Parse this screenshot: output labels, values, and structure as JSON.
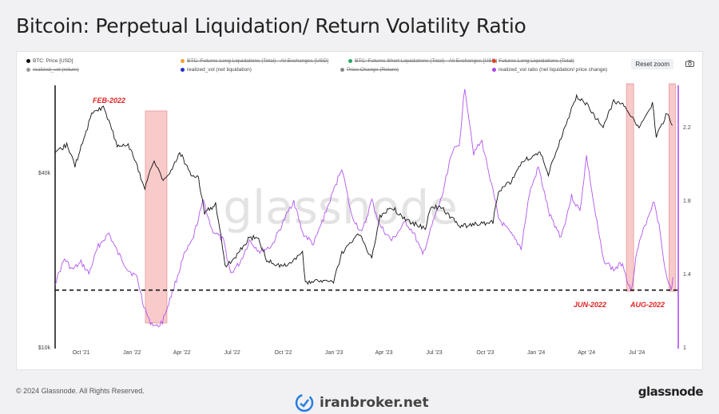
{
  "title": "Bitcoin: Perpetual Liquidation/ Return Volatility Ratio",
  "legend": [
    {
      "label": "BTC: Price [USD]",
      "color": "#111111",
      "strike": false
    },
    {
      "label": "BTC: Futures Long Liquidations (Total) - All Exchanges [USD]",
      "color": "#f0a030",
      "strike": true
    },
    {
      "label": "BTC: Futures Short Liquidations (Total) - All Exchanges [USD]",
      "color": "#22aa66",
      "strike": true
    },
    {
      "label": "Futures Long Liquidations (Total)",
      "color": "#e04020",
      "strike": true
    },
    {
      "label": "realized_vol (return)",
      "color": "#999999",
      "strike": true
    },
    {
      "label": "realized_vol (net liquidation)",
      "color": "#2233cc",
      "strike": false
    },
    {
      "label": "Price Change (Return)",
      "color": "#888888",
      "strike": true
    },
    {
      "label": "realized_vol ratio (net liquidation/ price change)",
      "color": "#aa44ee",
      "strike": false
    }
  ],
  "reset_zoom": "Reset zoom",
  "watermark_chart": "glassnode",
  "copyright": "© 2024 Glassnode. All Rights Reserved.",
  "brand": "glassnode",
  "site": "iranbroker.net",
  "colors": {
    "price": "#111111",
    "ratio": "#aa44ee",
    "highlight": "#f5b4b4",
    "annotation": "#e02020"
  },
  "chart_data": {
    "type": "line",
    "x_ticks": [
      "Oct '21",
      "Jan '22",
      "Apr '22",
      "Jul '22",
      "Oct '22",
      "Jan '23",
      "Apr '23",
      "Jul '23",
      "Oct '23",
      "Jan '24",
      "Apr '24",
      "Jul '24"
    ],
    "x_range": [
      "2021-08-15",
      "2024-09-05"
    ],
    "y_left_ticks": [
      "$10k",
      "$40k"
    ],
    "y_left_scale": "log",
    "y_left_range": [
      10000,
      85000
    ],
    "y_right_ticks": [
      "1",
      "1.4",
      "1.8",
      "2.2"
    ],
    "y_right_range": [
      1.0,
      2.47
    ],
    "threshold": 1.31,
    "series": [
      {
        "name": "BTC: Price [USD]",
        "axis": "left",
        "points": [
          [
            "2021-08-15",
            46000
          ],
          [
            "2021-09-05",
            50000
          ],
          [
            "2021-09-20",
            42000
          ],
          [
            "2021-10-10",
            55000
          ],
          [
            "2021-10-20",
            64000
          ],
          [
            "2021-11-10",
            67000
          ],
          [
            "2021-11-25",
            57000
          ],
          [
            "2021-12-05",
            49000
          ],
          [
            "2021-12-25",
            50000
          ],
          [
            "2022-01-10",
            42000
          ],
          [
            "2022-01-24",
            35000
          ],
          [
            "2022-02-10",
            44000
          ],
          [
            "2022-02-24",
            38000
          ],
          [
            "2022-03-10",
            39000
          ],
          [
            "2022-03-28",
            47000
          ],
          [
            "2022-04-15",
            40000
          ],
          [
            "2022-05-01",
            38000
          ],
          [
            "2022-05-12",
            29000
          ],
          [
            "2022-06-01",
            31000
          ],
          [
            "2022-06-18",
            19000
          ],
          [
            "2022-07-05",
            20000
          ],
          [
            "2022-07-30",
            23500
          ],
          [
            "2022-08-15",
            24000
          ],
          [
            "2022-09-01",
            20000
          ],
          [
            "2022-09-20",
            19000
          ],
          [
            "2022-10-15",
            19500
          ],
          [
            "2022-11-05",
            21000
          ],
          [
            "2022-11-10",
            16500
          ],
          [
            "2022-12-01",
            17000
          ],
          [
            "2022-12-31",
            16600
          ],
          [
            "2023-01-15",
            21000
          ],
          [
            "2023-02-15",
            24500
          ],
          [
            "2023-03-10",
            20000
          ],
          [
            "2023-03-25",
            28000
          ],
          [
            "2023-04-14",
            30500
          ],
          [
            "2023-05-10",
            27500
          ],
          [
            "2023-06-15",
            25500
          ],
          [
            "2023-06-25",
            30500
          ],
          [
            "2023-07-15",
            30000
          ],
          [
            "2023-08-17",
            26000
          ],
          [
            "2023-09-15",
            26500
          ],
          [
            "2023-10-15",
            27000
          ],
          [
            "2023-10-25",
            34500
          ],
          [
            "2023-11-15",
            37000
          ],
          [
            "2023-12-08",
            44000
          ],
          [
            "2024-01-10",
            46500
          ],
          [
            "2024-01-23",
            39500
          ],
          [
            "2024-02-15",
            52000
          ],
          [
            "2024-03-05",
            66000
          ],
          [
            "2024-03-14",
            73000
          ],
          [
            "2024-04-01",
            69000
          ],
          [
            "2024-04-17",
            61500
          ],
          [
            "2024-05-01",
            58000
          ],
          [
            "2024-05-20",
            70000
          ],
          [
            "2024-06-10",
            68000
          ],
          [
            "2024-06-25",
            61000
          ],
          [
            "2024-07-05",
            56500
          ],
          [
            "2024-07-29",
            69000
          ],
          [
            "2024-08-05",
            53000
          ],
          [
            "2024-08-15",
            58500
          ],
          [
            "2024-08-25",
            64000
          ],
          [
            "2024-09-03",
            58000
          ]
        ]
      },
      {
        "name": "realized_vol ratio (net liquidation/ price change)",
        "axis": "right",
        "points": [
          [
            "2021-08-15",
            1.35
          ],
          [
            "2021-09-01",
            1.48
          ],
          [
            "2021-09-15",
            1.42
          ],
          [
            "2021-10-01",
            1.46
          ],
          [
            "2021-10-15",
            1.4
          ],
          [
            "2021-11-01",
            1.55
          ],
          [
            "2021-11-20",
            1.62
          ],
          [
            "2021-12-05",
            1.52
          ],
          [
            "2021-12-25",
            1.42
          ],
          [
            "2022-01-10",
            1.38
          ],
          [
            "2022-01-20",
            1.25
          ],
          [
            "2022-02-01",
            1.14
          ],
          [
            "2022-02-15",
            1.11
          ],
          [
            "2022-02-25",
            1.14
          ],
          [
            "2022-03-15",
            1.3
          ],
          [
            "2022-04-05",
            1.5
          ],
          [
            "2022-04-20",
            1.58
          ],
          [
            "2022-05-10",
            1.8
          ],
          [
            "2022-05-25",
            1.64
          ],
          [
            "2022-06-15",
            1.58
          ],
          [
            "2022-06-28",
            1.4
          ],
          [
            "2022-07-15",
            1.46
          ],
          [
            "2022-08-01",
            1.58
          ],
          [
            "2022-08-20",
            1.52
          ],
          [
            "2022-09-10",
            1.55
          ],
          [
            "2022-10-01",
            1.68
          ],
          [
            "2022-10-20",
            1.8
          ],
          [
            "2022-11-05",
            1.62
          ],
          [
            "2022-11-25",
            1.56
          ],
          [
            "2022-12-15",
            1.72
          ],
          [
            "2023-01-01",
            1.86
          ],
          [
            "2023-01-15",
            1.98
          ],
          [
            "2023-02-01",
            1.72
          ],
          [
            "2023-02-20",
            1.62
          ],
          [
            "2023-03-10",
            1.8
          ],
          [
            "2023-03-25",
            1.66
          ],
          [
            "2023-04-15",
            1.58
          ],
          [
            "2023-05-10",
            1.68
          ],
          [
            "2023-05-25",
            1.62
          ],
          [
            "2023-06-10",
            1.5
          ],
          [
            "2023-07-01",
            1.7
          ],
          [
            "2023-07-15",
            1.82
          ],
          [
            "2023-08-01",
            2.06
          ],
          [
            "2023-08-15",
            2.1
          ],
          [
            "2023-08-25",
            2.42
          ],
          [
            "2023-09-10",
            2.06
          ],
          [
            "2023-09-25",
            2.12
          ],
          [
            "2023-10-10",
            1.92
          ],
          [
            "2023-10-25",
            1.7
          ],
          [
            "2023-11-15",
            1.62
          ],
          [
            "2023-12-05",
            1.54
          ],
          [
            "2023-12-20",
            1.84
          ],
          [
            "2024-01-05",
            1.98
          ],
          [
            "2024-01-25",
            1.72
          ],
          [
            "2024-02-15",
            1.6
          ],
          [
            "2024-03-05",
            1.82
          ],
          [
            "2024-03-20",
            1.74
          ],
          [
            "2024-04-01",
            2.04
          ],
          [
            "2024-04-15",
            1.76
          ],
          [
            "2024-05-01",
            1.48
          ],
          [
            "2024-05-20",
            1.42
          ],
          [
            "2024-06-05",
            1.46
          ],
          [
            "2024-06-20",
            1.3
          ],
          [
            "2024-07-01",
            1.52
          ],
          [
            "2024-07-15",
            1.66
          ],
          [
            "2024-08-01",
            1.8
          ],
          [
            "2024-08-10",
            1.66
          ],
          [
            "2024-08-20",
            1.44
          ],
          [
            "2024-09-01",
            1.3
          ],
          [
            "2024-09-04",
            1.38
          ]
        ]
      }
    ],
    "highlights": [
      {
        "label": "FEB-2022",
        "from": "2022-01-25",
        "to": "2022-03-05"
      },
      {
        "label": "JUN-2022",
        "from": "2024-06-12",
        "to": "2024-06-25"
      },
      {
        "label": "AUG-2022",
        "from": "2024-08-28",
        "to": "2024-09-07"
      }
    ]
  }
}
